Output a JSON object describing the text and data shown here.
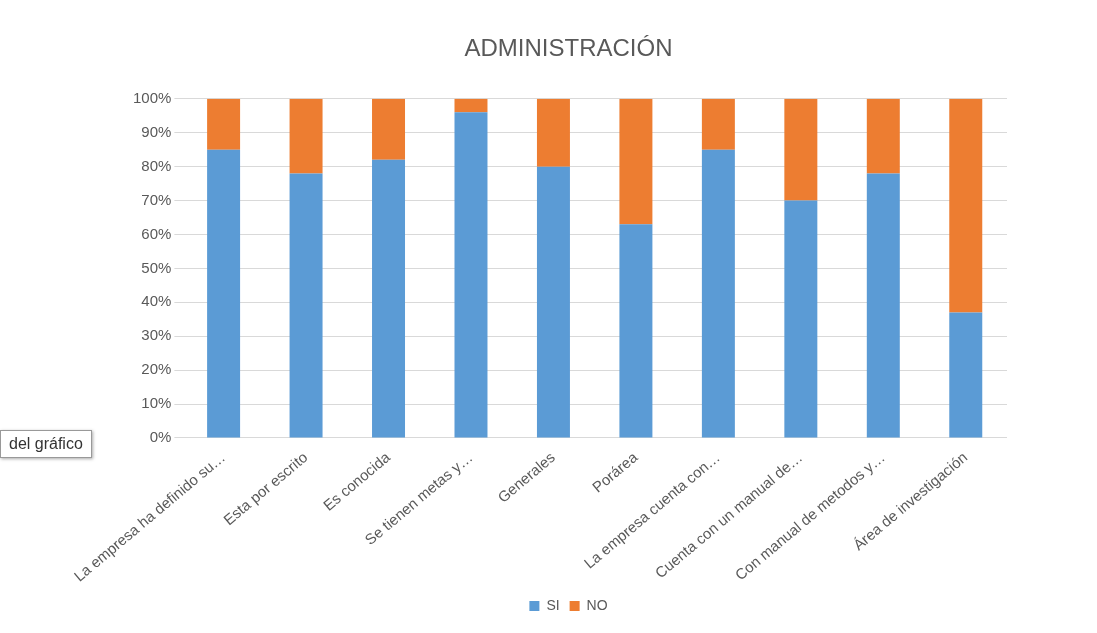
{
  "chart_data": {
    "type": "bar",
    "title": "ADMINISTRACIÓN",
    "stacked": true,
    "categories": [
      "La empresa ha definido su…",
      "Esta por escrito",
      "Es conocida",
      "Se tienen metas y…",
      "Generales",
      "Porárea",
      "La empresa cuenta con…",
      "Cuenta con un manual de…",
      "Con manual de metodos y…",
      "Área de investigación"
    ],
    "series": [
      {
        "name": "SI",
        "color": "#5b9bd5",
        "values": [
          85,
          78,
          82,
          96,
          80,
          63,
          85,
          70,
          78,
          37
        ]
      },
      {
        "name": "NO",
        "color": "#ed7d31",
        "values": [
          15,
          22,
          18,
          4,
          20,
          37,
          15,
          30,
          22,
          63
        ]
      }
    ],
    "ylim": [
      0,
      100
    ],
    "yticks": [
      {
        "value": 0,
        "label": "0%"
      },
      {
        "value": 10,
        "label": "10%"
      },
      {
        "value": 20,
        "label": "20%"
      },
      {
        "value": 30,
        "label": "30%"
      },
      {
        "value": 40,
        "label": "40%"
      },
      {
        "value": 50,
        "label": "50%"
      },
      {
        "value": 60,
        "label": "60%"
      },
      {
        "value": 70,
        "label": "70%"
      },
      {
        "value": 80,
        "label": "80%"
      },
      {
        "value": 90,
        "label": "90%"
      },
      {
        "value": 100,
        "label": "100%"
      }
    ],
    "grid": "y",
    "legend": "bottom",
    "annotations": [
      "del gráfico"
    ]
  }
}
